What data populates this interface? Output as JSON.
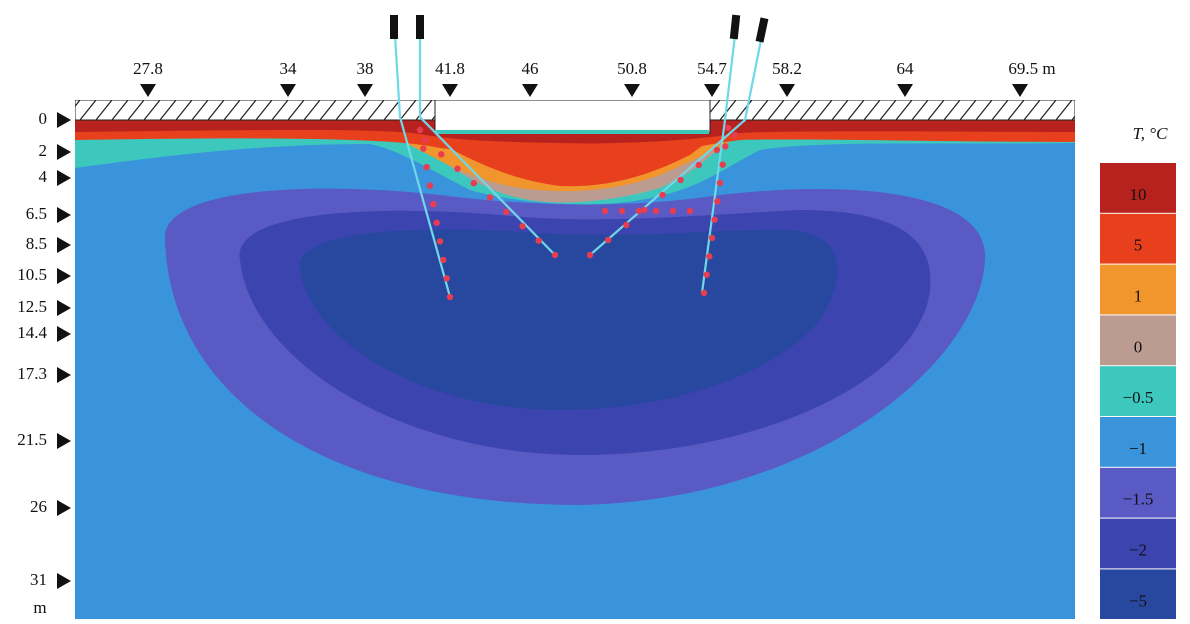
{
  "top_markers": [
    "27.8",
    "34",
    "38",
    "41.8",
    "46",
    "50.8",
    "54.7",
    "58.2",
    "64",
    "69.5 m"
  ],
  "depth_labels": [
    "0",
    "2",
    "4",
    "6.5",
    "8.5",
    "10.5",
    "12.5",
    "14.4",
    "17.3",
    "21.5",
    "26",
    "31",
    "m"
  ],
  "legend": {
    "title": "T, °C",
    "labels": [
      "10",
      "5",
      "1",
      "0",
      "−0.5",
      "−1",
      "−1.5",
      "−2",
      "−5"
    ]
  }
}
